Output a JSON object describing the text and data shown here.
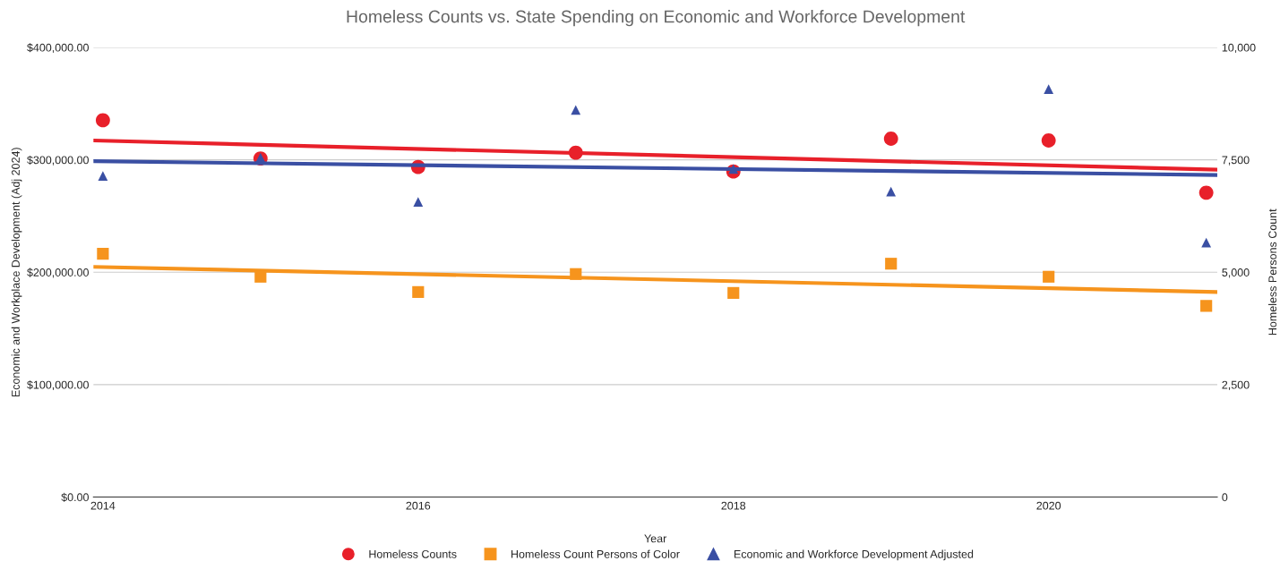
{
  "chart_data": {
    "type": "scatter",
    "title": "Homeless Counts vs. State Spending on Economic and Workforce Development",
    "xlabel": "Year",
    "ylabel": "Economic and Workplace Development (Adj 2024)",
    "y2label": "Homeless Persons Count",
    "xlim": [
      2013.94,
      2021.07
    ],
    "xticks": [
      2014,
      2016,
      2018,
      2020
    ],
    "ylim": [
      0,
      400000
    ],
    "yticks": [
      {
        "value": 0,
        "label": "$0.00"
      },
      {
        "value": 100000,
        "label": "$100,000.00"
      },
      {
        "value": 200000,
        "label": "$200,000.00"
      },
      {
        "value": 300000,
        "label": "$300,000.00"
      },
      {
        "value": 400000,
        "label": "$400,000.00"
      }
    ],
    "y2lim": [
      0,
      10000
    ],
    "y2ticks": [
      0,
      {
        "value": 2500,
        "label": "2,500"
      },
      {
        "value": 5000,
        "label": "5,000"
      },
      {
        "value": 7500,
        "label": "7,500"
      },
      {
        "value": 10000,
        "label": "10,000"
      }
    ],
    "grid": true,
    "legend": "bottom",
    "series": [
      {
        "name": "Homeless Counts",
        "marker": "circle",
        "color": "#e8202a",
        "axis": "y2",
        "x": [
          2014,
          2015,
          2016,
          2017,
          2018,
          2019,
          2020,
          2021
        ],
        "values": [
          8380,
          7530,
          7340,
          7660,
          7240,
          7970,
          7930,
          6770
        ]
      },
      {
        "name": "Homeless Count Persons of Color",
        "marker": "square",
        "color": "#f6941d",
        "axis": "y2",
        "x": [
          2014,
          2015,
          2016,
          2017,
          2018,
          2019,
          2020,
          2021
        ],
        "values": [
          5410,
          4900,
          4560,
          4960,
          4540,
          5190,
          4900,
          4250
        ]
      },
      {
        "name": "Economic and Workforce Development Adjusted",
        "marker": "triangle",
        "color": "#3a4fa3",
        "axis": "y",
        "x": [
          2014,
          2015,
          2016,
          2017,
          2018,
          2019,
          2020,
          2021
        ],
        "values": [
          285700,
          301900,
          262500,
          344400,
          291900,
          271800,
          362900,
          226300
        ]
      },
      {
        "type": "line",
        "color": "#e8202a",
        "axis": "y2",
        "x": [
          2013.94,
          2021.07
        ],
        "values": [
          7930,
          7280
        ]
      },
      {
        "type": "line",
        "color": "#f6941d",
        "axis": "y2",
        "x": [
          2013.94,
          2021.07
        ],
        "values": [
          5120,
          4560
        ]
      },
      {
        "type": "line",
        "color": "#3a4fa3",
        "axis": "y",
        "x": [
          2013.94,
          2021.07
        ],
        "values": [
          298800,
          286500
        ]
      }
    ]
  }
}
